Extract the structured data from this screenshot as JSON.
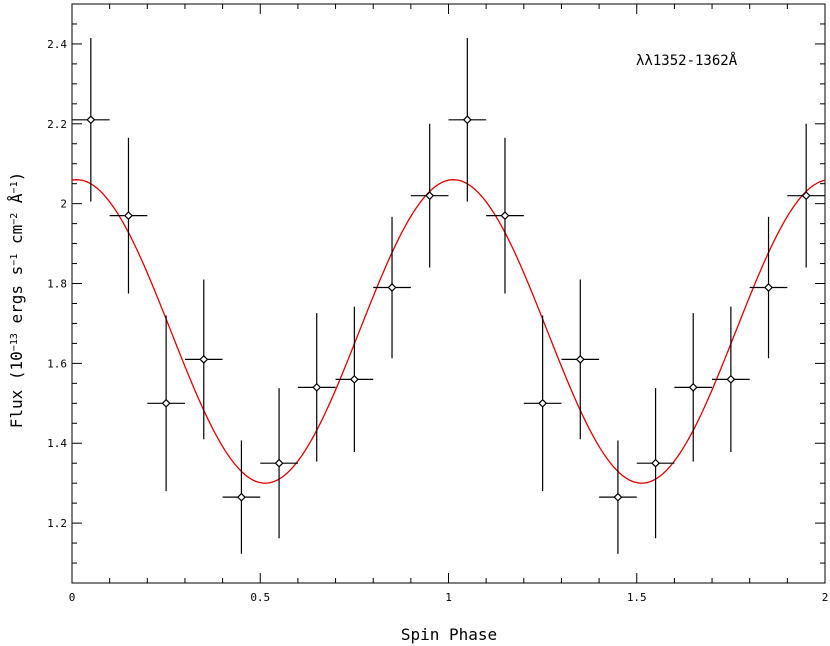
{
  "chart_data": {
    "type": "scatter",
    "xlabel": "Spin Phase",
    "ylabel": {
      "prefix": "Flux (10",
      "exp1": "−13",
      "unit1": " ergs s",
      "exp2": "−1",
      "unit2": " cm",
      "exp3": "−2",
      "unit3": " Å",
      "exp4": "−1",
      "suffix": ")"
    },
    "annotation": "λλ1352-1362Å",
    "xlim": [
      0,
      2
    ],
    "ylim": [
      1.05,
      2.5
    ],
    "x_ticks": [
      0,
      0.5,
      1,
      1.5,
      2
    ],
    "x_tick_labels": [
      "0",
      "0.5",
      "1",
      "1.5",
      "2"
    ],
    "y_ticks": [
      1.2,
      1.4,
      1.6,
      1.8,
      2.0,
      2.2,
      2.4
    ],
    "y_tick_labels": [
      "1.2",
      "1.4",
      "1.6",
      "1.8",
      "2",
      "2.2",
      "2.4"
    ],
    "grid": false,
    "series": [
      {
        "type": "errorbar",
        "marker": "diamond",
        "color": "#000000",
        "x": [
          0.05,
          0.15,
          0.25,
          0.35,
          0.45,
          0.55,
          0.65,
          0.75,
          0.85,
          0.95,
          1.05,
          1.15,
          1.25,
          1.35,
          1.45,
          1.55,
          1.65,
          1.75,
          1.85,
          1.95
        ],
        "y": [
          2.21,
          1.97,
          1.5,
          1.61,
          1.265,
          1.35,
          1.54,
          1.56,
          1.79,
          2.02,
          2.21,
          1.97,
          1.5,
          1.61,
          1.265,
          1.35,
          1.54,
          1.56,
          1.79,
          2.02
        ],
        "xerr": 0.05,
        "yerr": [
          0.205,
          0.195,
          0.22,
          0.2,
          0.142,
          0.188,
          0.186,
          0.182,
          0.177,
          0.18,
          0.205,
          0.195,
          0.22,
          0.2,
          0.142,
          0.188,
          0.186,
          0.182,
          0.177,
          0.18
        ]
      },
      {
        "type": "line",
        "color": "#e00000",
        "function": "sinusoid",
        "mean": 1.68,
        "amplitude": 0.38,
        "peak_phase": 1.013,
        "period": 1.0,
        "x_range": [
          0,
          2
        ]
      }
    ]
  }
}
